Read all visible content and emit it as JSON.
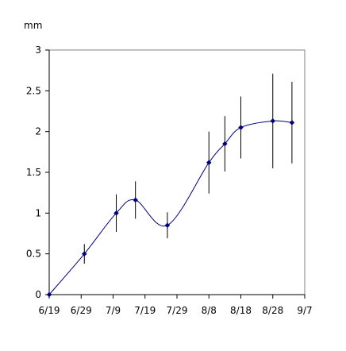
{
  "chart_data": {
    "type": "line",
    "ylabel": "mm",
    "x_ticks": [
      "6/19",
      "6/29",
      "7/9",
      "7/19",
      "7/29",
      "8/8",
      "8/18",
      "8/28",
      "9/7"
    ],
    "xlim": [
      "6/19",
      "9/7"
    ],
    "ylim": [
      0,
      3
    ],
    "y_ticks": [
      "0",
      "0.5",
      "1",
      "1.5",
      "2",
      "2.5",
      "3"
    ],
    "grid": false,
    "legend": "none",
    "series": [
      {
        "color": "#000080",
        "points": [
          {
            "x": "6/19",
            "y": 0.0,
            "err": 0.0
          },
          {
            "x": "6/30",
            "y": 0.5,
            "err": 0.12
          },
          {
            "x": "7/10",
            "y": 1.0,
            "err": 0.23
          },
          {
            "x": "7/16",
            "y": 1.16,
            "err": 0.23
          },
          {
            "x": "7/26",
            "y": 0.85,
            "err": 0.16
          },
          {
            "x": "8/8",
            "y": 1.62,
            "err": 0.38
          },
          {
            "x": "8/13",
            "y": 1.85,
            "err": 0.34
          },
          {
            "x": "8/18",
            "y": 2.05,
            "err": 0.38
          },
          {
            "x": "8/28",
            "y": 2.13,
            "err": 0.58
          },
          {
            "x": "9/3",
            "y": 2.11,
            "err": 0.5
          }
        ]
      }
    ],
    "colors": {
      "line": "#000080",
      "marker": "#000080",
      "error_bar": "#000000",
      "axis": "#000000"
    }
  }
}
